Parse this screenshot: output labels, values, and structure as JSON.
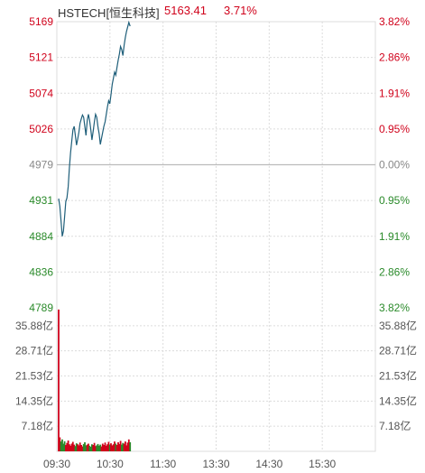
{
  "header": {
    "name": "HSTECH[恒生科技]",
    "price": "5163.41",
    "change_pct": "3.71%"
  },
  "colors": {
    "up": "#d0021b",
    "down": "#2a8a2a",
    "neutral": "#888888",
    "price_line": "#1f5f7a",
    "grid": "#dcdcdc",
    "midline": "#bbbbbb"
  },
  "chart_data": [
    {
      "type": "line",
      "title": "",
      "x_tick_labels": [
        "09:30",
        "10:30",
        "11:30",
        "13:30",
        "14:30",
        "15:30"
      ],
      "y_tick_labels": [
        "5169",
        "5121",
        "5074",
        "5026",
        "4979",
        "4931",
        "4884",
        "4836",
        "4789"
      ],
      "y_right_tick_labels": [
        "3.82%",
        "2.86%",
        "1.91%",
        "0.95%",
        "0.00%",
        "0.95%",
        "1.91%",
        "2.86%",
        "3.82%"
      ],
      "reference_price": 4979,
      "ylim": [
        4789,
        5169
      ],
      "grid": true,
      "series": [
        {
          "values": [
            4934,
            4924,
            4905,
            4884,
            4891,
            4910,
            4930,
            4935,
            4950,
            4975,
            4995,
            5010,
            5025,
            5030,
            5018,
            5005,
            5013,
            5022,
            5034,
            5040,
            5045,
            5042,
            5030,
            5018,
            5038,
            5046,
            5038,
            5026,
            5012,
            5024,
            5036,
            5046,
            5042,
            5030,
            5020,
            5006,
            5014,
            5022,
            5030,
            5036,
            5046,
            5056,
            5064,
            5060,
            5072,
            5086,
            5094,
            5102,
            5098,
            5108,
            5118,
            5126,
            5136,
            5132,
            5124,
            5138,
            5148,
            5156,
            5162,
            5168,
            5163
          ]
        }
      ]
    },
    {
      "type": "bar",
      "title": "",
      "y_tick_labels": [
        "35.88亿",
        "28.71亿",
        "21.53亿",
        "14.35亿",
        "7.18亿"
      ],
      "ylim": [
        0,
        41.0
      ],
      "volumes": [
        40.5,
        4.0,
        2.8,
        3.4,
        2.2,
        2.9,
        1.8,
        2.4,
        3.1,
        2.0,
        1.6,
        2.2,
        2.7,
        1.9,
        1.5,
        2.3,
        2.0,
        1.7,
        2.5,
        1.8,
        1.4,
        2.1,
        2.6,
        1.7,
        1.9,
        2.2,
        1.6,
        1.3,
        2.0,
        1.8,
        2.4,
        1.5,
        1.7,
        2.1,
        1.6,
        1.9,
        1.4,
        2.2,
        1.8,
        2.5,
        1.6,
        2.0,
        2.7,
        1.9,
        2.3,
        1.7,
        2.0,
        2.8,
        2.2,
        1.8,
        2.6,
        2.1,
        3.0,
        1.9,
        2.4,
        2.2,
        2.8,
        1.7,
        2.5,
        3.4,
        2.6
      ],
      "bar_up": [
        true,
        true,
        false,
        false,
        false,
        false,
        true,
        true,
        true,
        true,
        true,
        true,
        true,
        true,
        false,
        false,
        true,
        true,
        true,
        true,
        true,
        false,
        false,
        false,
        true,
        true,
        false,
        false,
        false,
        true,
        true,
        true,
        false,
        false,
        false,
        false,
        true,
        true,
        true,
        true,
        true,
        true,
        true,
        false,
        true,
        true,
        true,
        true,
        false,
        true,
        true,
        true,
        true,
        false,
        false,
        true,
        true,
        true,
        true,
        true,
        false
      ]
    }
  ]
}
